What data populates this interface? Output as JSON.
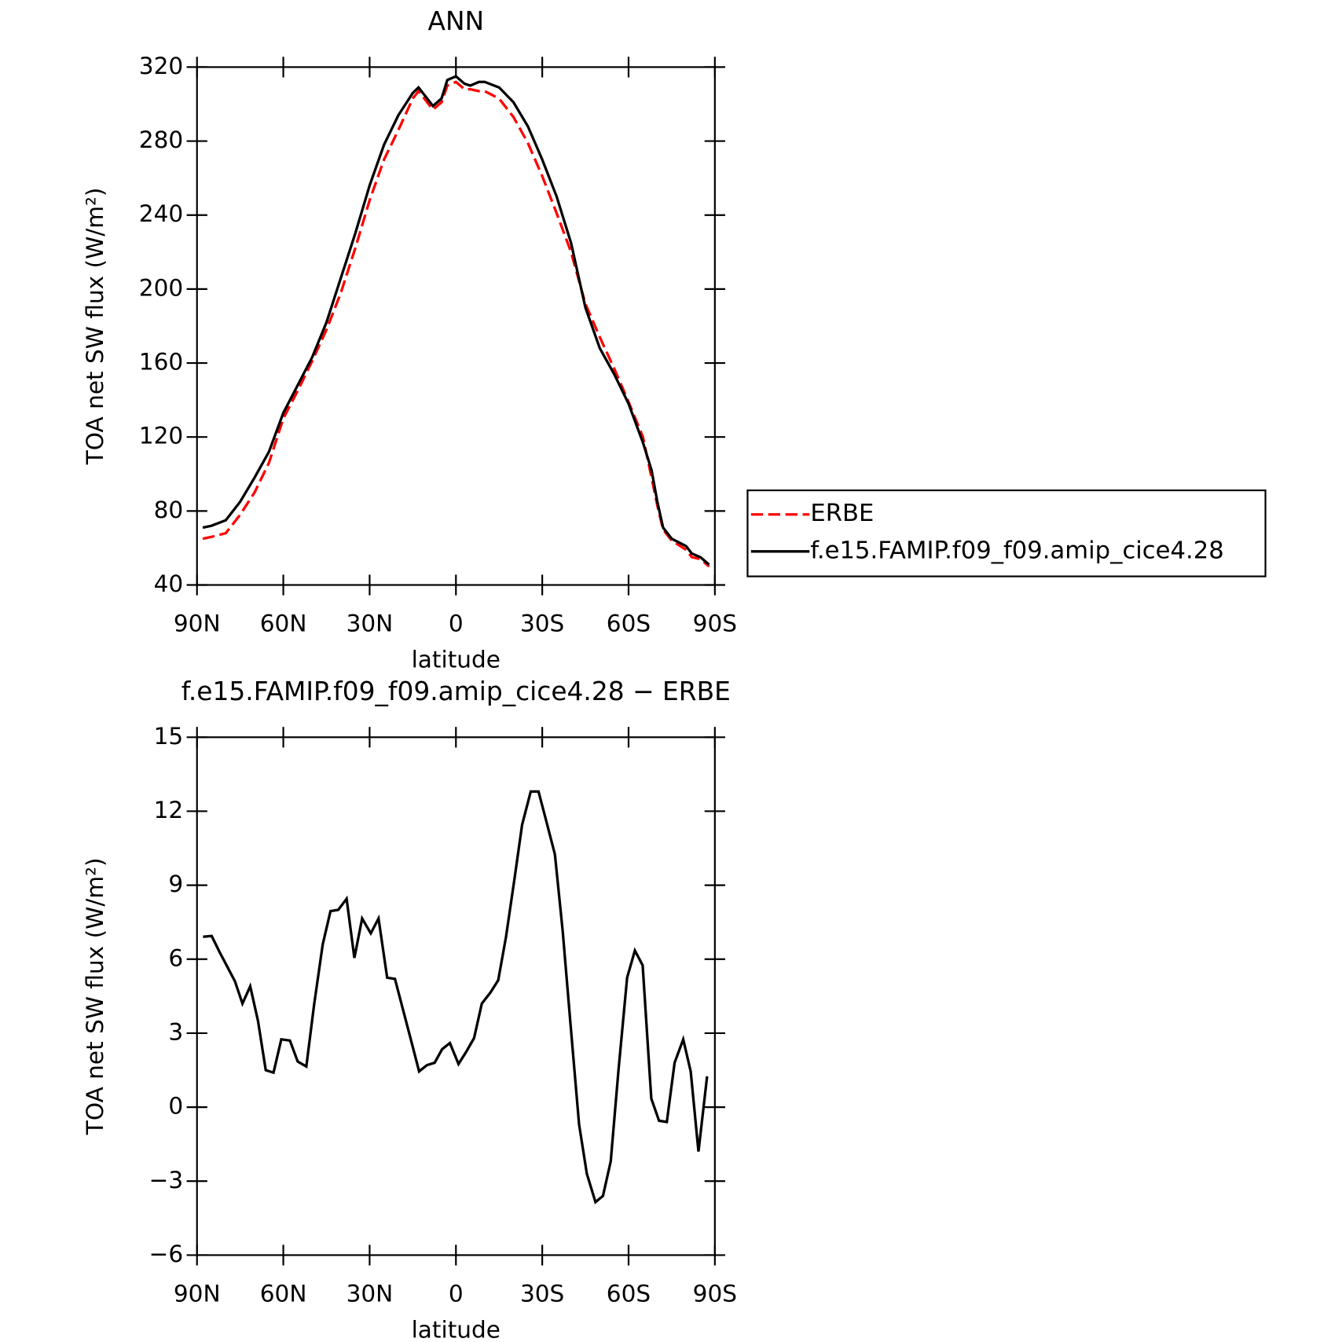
{
  "chart_data": [
    {
      "type": "line",
      "title": "ANN",
      "xlabel": "latitude",
      "ylabel": "TOA net SW flux (W/m²)",
      "x": [
        88,
        85,
        80,
        75,
        70,
        65,
        60,
        55,
        50,
        45,
        40,
        35,
        30,
        25,
        20,
        15,
        13,
        10,
        8,
        5,
        3,
        0,
        -3,
        -5,
        -8,
        -10,
        -15,
        -20,
        -25,
        -30,
        -35,
        -40,
        -45,
        -50,
        -55,
        -60,
        -65,
        -68,
        -70,
        -72,
        -75,
        -80,
        -82,
        -85,
        -88
      ],
      "series": [
        {
          "name": "ERBE",
          "color": "#ff0000",
          "dashed": true,
          "values": [
            65,
            66,
            68,
            78,
            90,
            106,
            130,
            145,
            161,
            178,
            198,
            222,
            248,
            270,
            286,
            303,
            307,
            301,
            297,
            301,
            310,
            312,
            308,
            308,
            307,
            307,
            303,
            293,
            279,
            261,
            241,
            220,
            192,
            174,
            157,
            139,
            120,
            98,
            83,
            70,
            64,
            59,
            55,
            54,
            50
          ]
        },
        {
          "name": "f.e15.FAMIP.f09_f09.amip_cice4.28",
          "color": "#000000",
          "dashed": false,
          "values": [
            71,
            72,
            75,
            85,
            98,
            112,
            133,
            148,
            163,
            182,
            206,
            230,
            256,
            278,
            294,
            306,
            309,
            303,
            299,
            303,
            313,
            315,
            311,
            310,
            312,
            312,
            309,
            301,
            288,
            270,
            250,
            225,
            190,
            168,
            154,
            138,
            117,
            102,
            85,
            71,
            65,
            61,
            57,
            55,
            51
          ]
        }
      ],
      "xlim": [
        90,
        -90
      ],
      "xticks": [
        {
          "value": 90,
          "label": "90N"
        },
        {
          "value": 60,
          "label": "60N"
        },
        {
          "value": 30,
          "label": "30N"
        },
        0,
        {
          "value": -30,
          "label": "30S"
        },
        {
          "value": -60,
          "label": "60S"
        },
        {
          "value": -90,
          "label": "90S"
        }
      ],
      "ylim": [
        40,
        320
      ],
      "yticks": [
        40,
        80,
        120,
        160,
        200,
        240,
        280,
        320
      ],
      "legend": "outside-right"
    },
    {
      "type": "line",
      "title": "f.e15.FAMIP.f09_f09.amip_cice4.28 − ERBE",
      "xlabel": "latitude",
      "ylabel": "TOA net SW flux (W/m²)",
      "x": [
        87.9,
        84.9,
        82.2,
        79.5,
        76.8,
        74.2,
        71.5,
        68.8,
        66.1,
        63.4,
        60.7,
        57.7,
        55.0,
        52.0,
        49.3,
        46.3,
        43.6,
        40.9,
        38.0,
        35.3,
        32.6,
        29.6,
        26.9,
        23.9,
        21.2,
        18.5,
        15.8,
        12.8,
        10.1,
        7.4,
        4.8,
        2.1,
        -0.9,
        -3.6,
        -6.3,
        -9.0,
        -12.0,
        -14.7,
        -17.4,
        -20.4,
        -23.0,
        -26.0,
        -28.7,
        -31.4,
        -34.4,
        -37.1,
        -39.8,
        -42.8,
        -45.5,
        -48.5,
        -51.1,
        -53.8,
        -56.5,
        -59.5,
        -62.2,
        -64.9,
        -67.9,
        -70.6,
        -73.3,
        -76.0,
        -79.0,
        -81.6,
        -84.3,
        -87.3
      ],
      "series": [
        {
          "color": "#000000",
          "dashed": false,
          "values": [
            6.91,
            6.94,
            6.3,
            5.7,
            5.1,
            4.2,
            4.9,
            3.5,
            1.5,
            1.4,
            2.75,
            2.7,
            1.85,
            1.65,
            4.15,
            6.6,
            7.95,
            8.0,
            8.45,
            6.05,
            7.65,
            7.05,
            7.65,
            5.25,
            5.2,
            4.0,
            2.8,
            1.45,
            1.7,
            1.8,
            2.35,
            2.6,
            1.75,
            2.25,
            2.8,
            4.2,
            4.65,
            5.15,
            6.9,
            9.3,
            11.45,
            12.8,
            12.8,
            11.6,
            10.25,
            7.15,
            3.4,
            -0.7,
            -2.7,
            -3.85,
            -3.6,
            -2.2,
            1.5,
            5.25,
            6.35,
            5.75,
            0.35,
            -0.55,
            -0.6,
            1.8,
            2.75,
            1.45,
            -1.8,
            1.25
          ]
        }
      ],
      "xlim": [
        90,
        -90
      ],
      "xticks": [
        {
          "value": 90,
          "label": "90N"
        },
        {
          "value": 60,
          "label": "60N"
        },
        {
          "value": 30,
          "label": "30N"
        },
        0,
        {
          "value": -30,
          "label": "30S"
        },
        {
          "value": -60,
          "label": "60S"
        },
        {
          "value": -90,
          "label": "90S"
        }
      ],
      "ylim": [
        -6,
        15
      ],
      "yticks": [
        {
          "value": -6,
          "label": "−6"
        },
        {
          "value": -3,
          "label": "−3"
        },
        0,
        3,
        6,
        9,
        12,
        15
      ]
    }
  ]
}
